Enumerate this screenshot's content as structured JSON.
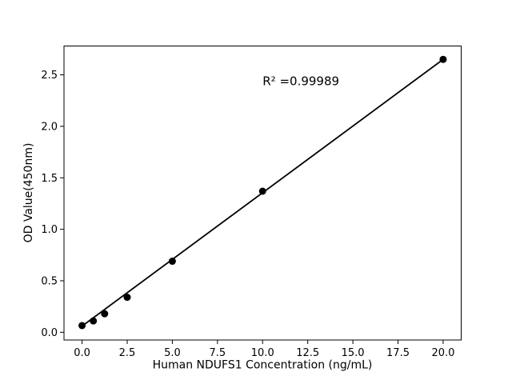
{
  "chart_data": {
    "type": "scatter",
    "title": "",
    "xlabel": "Human NDUFS1 Concentration (ng/mL)",
    "ylabel": "OD Value(450nm)",
    "annotation": {
      "text": "R² =0.99989",
      "x": 10,
      "y": 2.4
    },
    "x": [
      0,
      0.625,
      1.25,
      2.5,
      5,
      10,
      20
    ],
    "y": [
      0.065,
      0.11,
      0.18,
      0.34,
      0.69,
      1.37,
      2.65
    ],
    "fit_line": {
      "x": [
        0,
        20
      ],
      "y": [
        0.06,
        2.65
      ]
    },
    "xlim": [
      -1,
      21
    ],
    "ylim": [
      -0.075,
      2.78
    ],
    "xticks": [
      0.0,
      2.5,
      5.0,
      7.5,
      10.0,
      12.5,
      15.0,
      17.5,
      20.0
    ],
    "yticks": [
      0.0,
      0.5,
      1.0,
      1.5,
      2.0,
      2.5
    ],
    "grid": false,
    "legend": null,
    "line_color": "#000000",
    "marker_color": "#000000",
    "background_color": "#ffffff"
  }
}
